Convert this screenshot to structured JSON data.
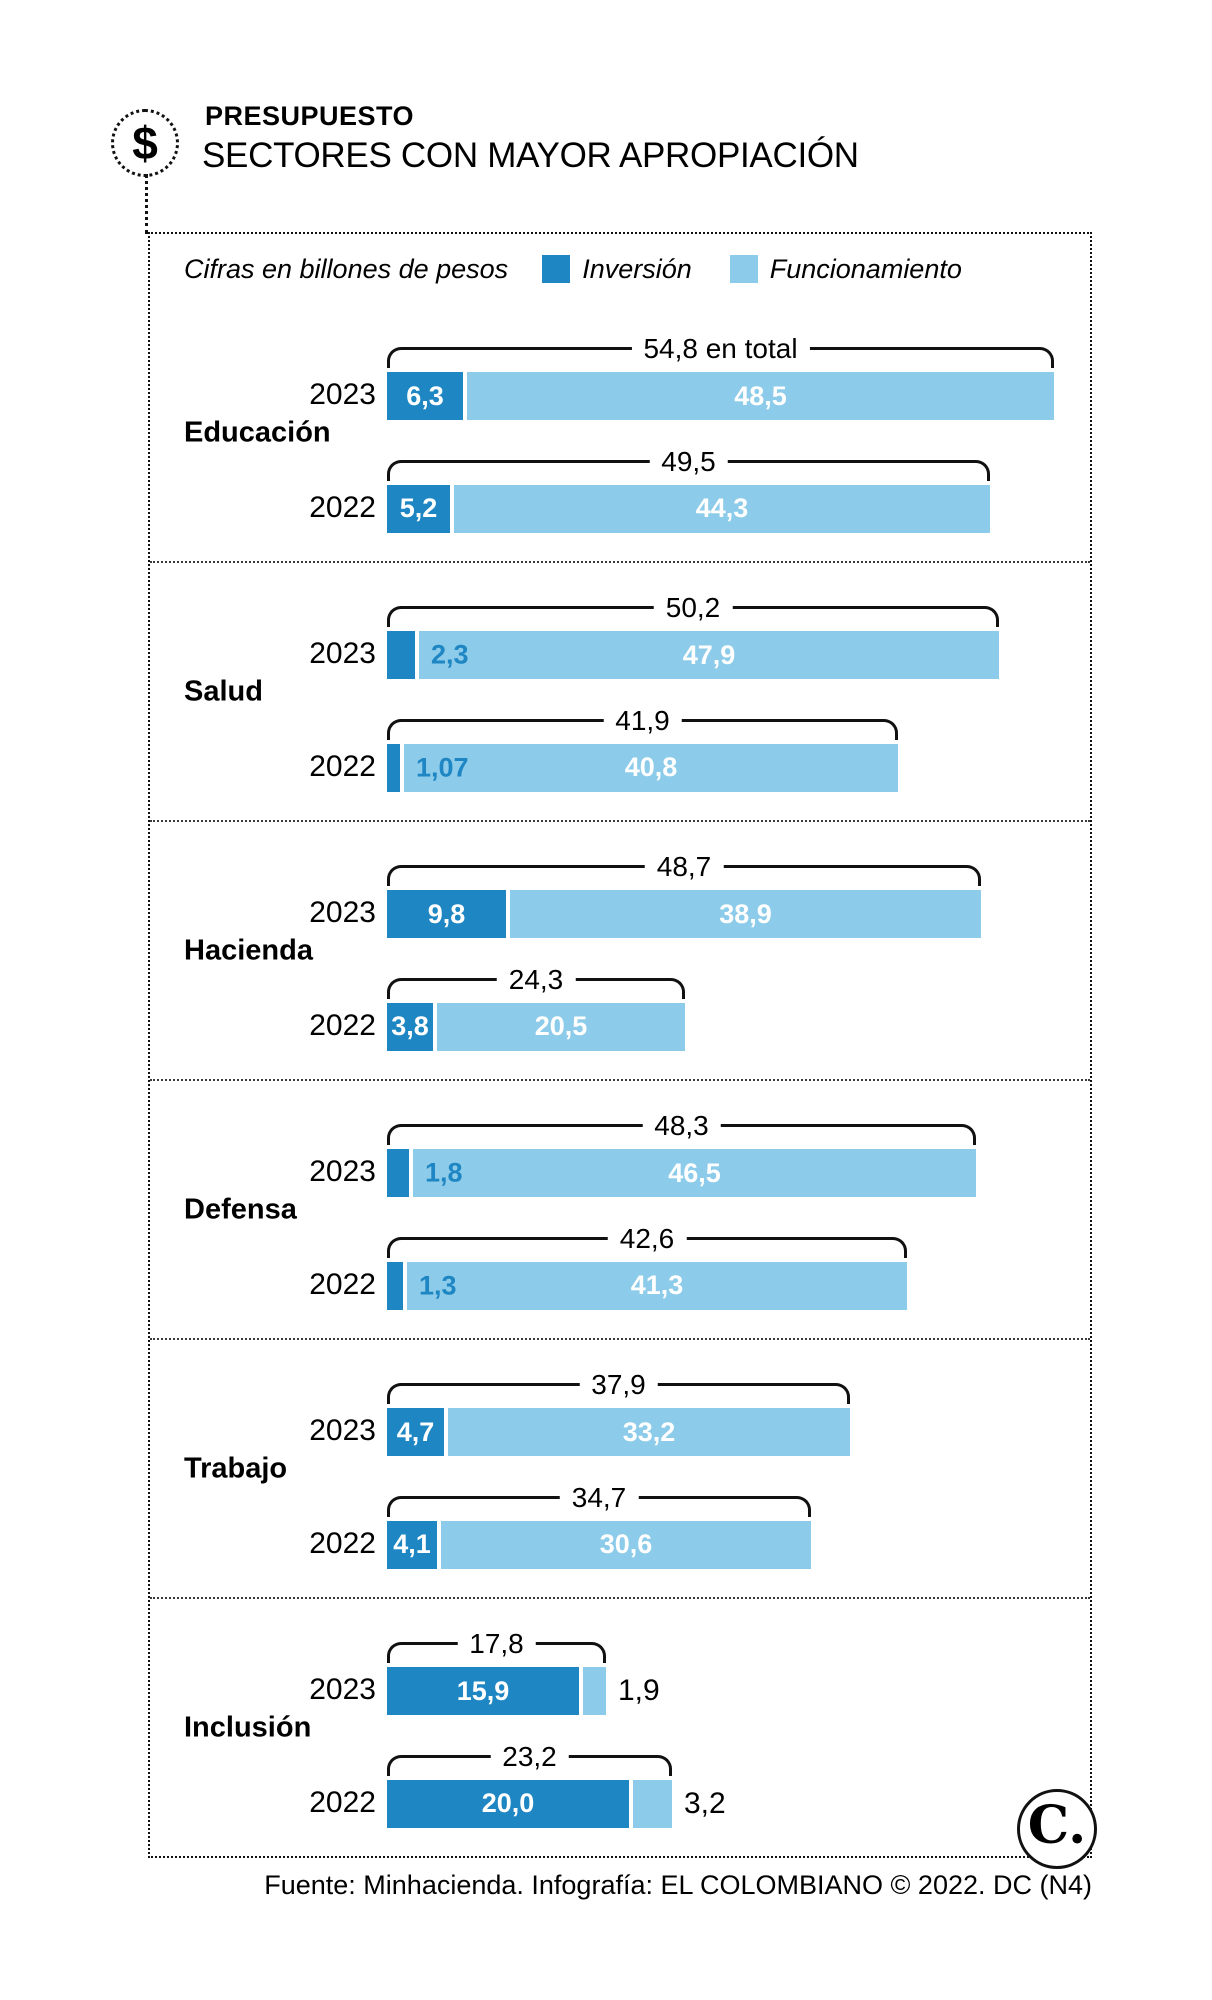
{
  "header": {
    "badge_symbol": "$",
    "kicker": "PRESUPUESTO",
    "title": "SECTORES CON MAYOR APROPIACIÓN"
  },
  "legend": {
    "note": "Cifras en billones de pesos",
    "series": [
      {
        "label": "Inversión",
        "color": "#1d86c3"
      },
      {
        "label": "Funcionamiento",
        "color": "#8ccbe9"
      }
    ]
  },
  "colors": {
    "inversion": "#1d86c3",
    "funcionamiento": "#8ccbe9",
    "ink": "#111111"
  },
  "footer": {
    "source": "Fuente: Minhacienda. Infografía: EL COLOMBIANO © 2022. DC (N4)",
    "logo_text": "C."
  },
  "chart_data": {
    "type": "bar",
    "orientation": "horizontal",
    "stacked": true,
    "unit": "billones de pesos",
    "series_names": [
      "Inversión",
      "Funcionamiento"
    ],
    "sectors": [
      {
        "name": "Educación",
        "rows": [
          {
            "year": "2023",
            "total": 54.8,
            "total_label": "54,8 en total",
            "inversion": 6.3,
            "inversion_label": "6,3",
            "inversion_placement": "inside",
            "funcionamiento": 48.5,
            "funcionamiento_label": "48,5",
            "funcionamiento_placement": "inside"
          },
          {
            "year": "2022",
            "total": 49.5,
            "total_label": "49,5",
            "inversion": 5.2,
            "inversion_label": "5,2",
            "inversion_placement": "inside",
            "funcionamiento": 44.3,
            "funcionamiento_label": "44,3",
            "funcionamiento_placement": "inside"
          }
        ]
      },
      {
        "name": "Salud",
        "rows": [
          {
            "year": "2023",
            "total": 50.2,
            "total_label": "50,2",
            "inversion": 2.3,
            "inversion_label": "2,3",
            "inversion_placement": "on-light",
            "funcionamiento": 47.9,
            "funcionamiento_label": "47,9",
            "funcionamiento_placement": "inside"
          },
          {
            "year": "2022",
            "total": 41.9,
            "total_label": "41,9",
            "inversion": 1.07,
            "inversion_label": "1,07",
            "inversion_placement": "on-light",
            "funcionamiento": 40.8,
            "funcionamiento_label": "40,8",
            "funcionamiento_placement": "inside"
          }
        ]
      },
      {
        "name": "Hacienda",
        "rows": [
          {
            "year": "2023",
            "total": 48.7,
            "total_label": "48,7",
            "inversion": 9.8,
            "inversion_label": "9,8",
            "inversion_placement": "inside",
            "funcionamiento": 38.9,
            "funcionamiento_label": "38,9",
            "funcionamiento_placement": "inside"
          },
          {
            "year": "2022",
            "total": 24.3,
            "total_label": "24,3",
            "inversion": 3.8,
            "inversion_label": "3,8",
            "inversion_placement": "inside",
            "funcionamiento": 20.5,
            "funcionamiento_label": "20,5",
            "funcionamiento_placement": "inside"
          }
        ]
      },
      {
        "name": "Defensa",
        "rows": [
          {
            "year": "2023",
            "total": 48.3,
            "total_label": "48,3",
            "inversion": 1.8,
            "inversion_label": "1,8",
            "inversion_placement": "on-light",
            "funcionamiento": 46.5,
            "funcionamiento_label": "46,5",
            "funcionamiento_placement": "inside"
          },
          {
            "year": "2022",
            "total": 42.6,
            "total_label": "42,6",
            "inversion": 1.3,
            "inversion_label": "1,3",
            "inversion_placement": "on-light",
            "funcionamiento": 41.3,
            "funcionamiento_label": "41,3",
            "funcionamiento_placement": "inside"
          }
        ]
      },
      {
        "name": "Trabajo",
        "rows": [
          {
            "year": "2023",
            "total": 37.9,
            "total_label": "37,9",
            "inversion": 4.7,
            "inversion_label": "4,7",
            "inversion_placement": "inside",
            "funcionamiento": 33.2,
            "funcionamiento_label": "33,2",
            "funcionamiento_placement": "inside"
          },
          {
            "year": "2022",
            "total": 34.7,
            "total_label": "34,7",
            "inversion": 4.1,
            "inversion_label": "4,1",
            "inversion_placement": "inside",
            "funcionamiento": 30.6,
            "funcionamiento_label": "30,6",
            "funcionamiento_placement": "inside"
          }
        ]
      },
      {
        "name": "Inclusión",
        "rows": [
          {
            "year": "2023",
            "total": 17.8,
            "total_label": "17,8",
            "inversion": 15.9,
            "inversion_label": "15,9",
            "inversion_placement": "inside",
            "funcionamiento": 1.9,
            "funcionamiento_label": "1,9",
            "funcionamiento_placement": "outside"
          },
          {
            "year": "2022",
            "total": 23.2,
            "total_label": "23,2",
            "inversion": 20.0,
            "inversion_label": "20,0",
            "inversion_placement": "inside",
            "funcionamiento": 3.2,
            "funcionamiento_label": "3,2",
            "funcionamiento_placement": "outside"
          }
        ]
      }
    ]
  }
}
